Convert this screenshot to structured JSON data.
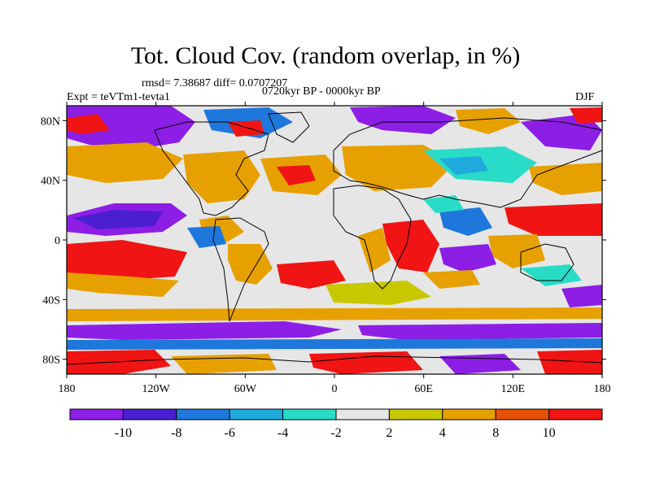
{
  "chart_data": {
    "type": "map-contour",
    "title": "Tot. Cloud Cov. (random overlap, in %)",
    "stats": "rmsd= 7.38687 diff= 0.0707207",
    "experiment": "Expt = teVTm1-tevta1",
    "period": "0720kyr BP - 0000kyr BP",
    "season": "DJF",
    "lon_ticks": [
      "180",
      "120W",
      "60W",
      "0",
      "60E",
      "120E",
      "180"
    ],
    "lat_ticks": [
      "80N",
      "40N",
      "0",
      "40S",
      "80S"
    ],
    "colorbar": {
      "boundaries": [
        "-10",
        "-8",
        "-6",
        "-4",
        "-2",
        "2",
        "4",
        "8",
        "10"
      ],
      "colors": [
        "#8c1ee6",
        "#4b1ed2",
        "#1e78dc",
        "#1eaadc",
        "#28dcc8",
        "#e6e6e6",
        "#c8c800",
        "#e6a000",
        "#e65000",
        "#f01414"
      ]
    }
  }
}
